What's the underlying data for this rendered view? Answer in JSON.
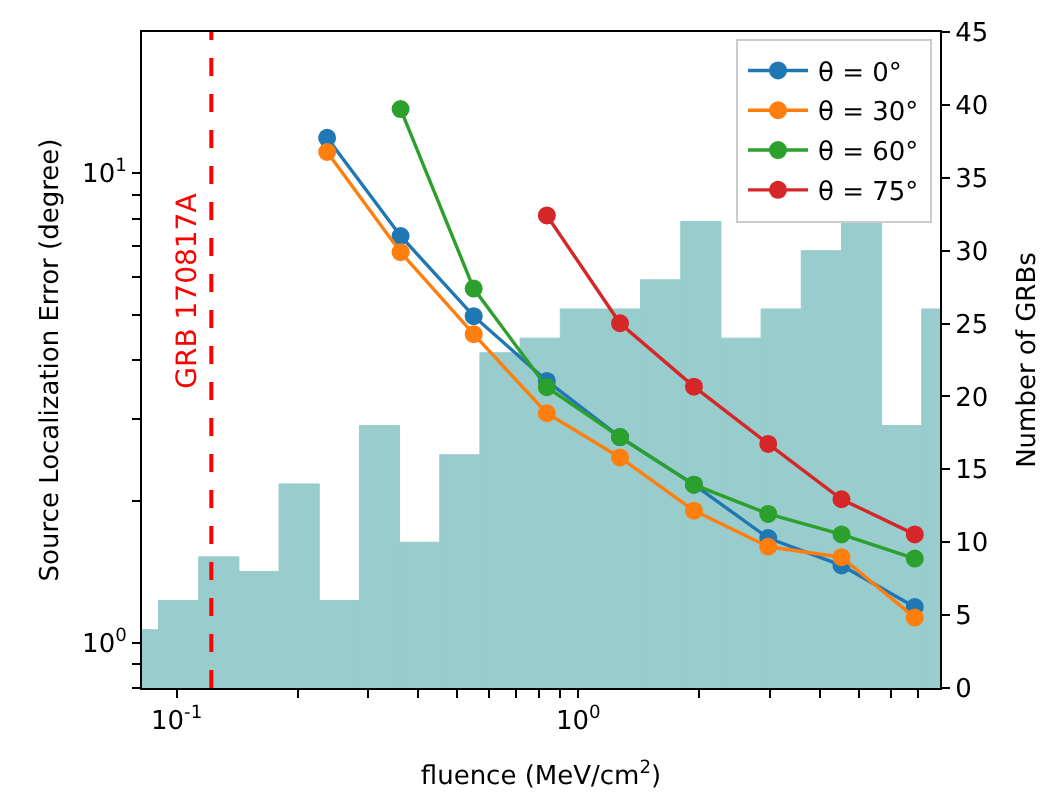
{
  "chart_data": {
    "type": "line",
    "xlabel": "fluence (MeV/cm$^{2}$)",
    "ylabel": "Source Localization Error (degree)",
    "y2label": "Number of GRBs",
    "log": "xy",
    "marker": "circle",
    "line_style": "solid",
    "grid": false,
    "legend": "top right",
    "xlim": [
      0.082,
      7.95
    ],
    "ylim": [
      0.8,
      20
    ],
    "y2lim": [
      0,
      45
    ],
    "xticks": [
      {
        "value": 0.1,
        "label": "10$^{-1}$"
      },
      {
        "value": 0.2,
        "label": null
      },
      {
        "value": 0.3,
        "label": null
      },
      {
        "value": 0.4,
        "label": null
      },
      {
        "value": 0.5,
        "label": null
      },
      {
        "value": 0.6,
        "label": null
      },
      {
        "value": 0.7,
        "label": null
      },
      {
        "value": 0.8,
        "label": null
      },
      {
        "value": 0.9,
        "label": null
      },
      {
        "value": 1,
        "label": "10$^{0}$"
      },
      {
        "value": 2,
        "label": null
      },
      {
        "value": 3,
        "label": null
      },
      {
        "value": 4,
        "label": null
      },
      {
        "value": 5,
        "label": null
      },
      {
        "value": 6,
        "label": null
      },
      {
        "value": 7,
        "label": null
      }
    ],
    "yticks": [
      {
        "value": 0.8,
        "label": null
      },
      {
        "value": 0.9,
        "label": null
      },
      {
        "value": 1,
        "label": "10$^{0}$"
      },
      {
        "value": 2,
        "label": null
      },
      {
        "value": 3,
        "label": null
      },
      {
        "value": 4,
        "label": null
      },
      {
        "value": 5,
        "label": null
      },
      {
        "value": 6,
        "label": null
      },
      {
        "value": 7,
        "label": null
      },
      {
        "value": 8,
        "label": null
      },
      {
        "value": 9,
        "label": null
      },
      {
        "value": 10,
        "label": "10$^{1}$"
      }
    ],
    "y2ticks": [
      0,
      5,
      10,
      15,
      20,
      25,
      30,
      35,
      40,
      45
    ],
    "x": [
      0.237,
      0.361,
      0.549,
      0.835,
      1.27,
      1.94,
      2.97,
      4.52,
      6.88
    ],
    "series": [
      {
        "type": "histogram",
        "axis": "y2",
        "color": "#99cccc",
        "bins": [
          0.082,
          0.0902,
          0.1135,
          0.1429,
          0.1799,
          0.2265,
          0.2851,
          0.3589,
          0.4519,
          0.5689,
          0.7161,
          0.9016,
          1.135,
          1.429,
          1.799,
          2.265,
          2.851,
          3.589,
          4.519,
          5.689,
          7.161,
          7.95
        ],
        "values": [
          4,
          6,
          9,
          8,
          14,
          6,
          18,
          10,
          16,
          23,
          24,
          26,
          26,
          28,
          32,
          24,
          26,
          30,
          32,
          18,
          26
        ]
      },
      {
        "name": "θ = 0°",
        "color": "#1f77b4",
        "values": [
          11.9,
          7.35,
          4.96,
          3.61,
          2.74,
          2.17,
          1.67,
          1.46,
          1.19
        ]
      },
      {
        "name": "θ = 30°",
        "color": "#ff7f0e",
        "values": [
          11.1,
          6.79,
          4.54,
          3.08,
          2.48,
          1.91,
          1.6,
          1.52,
          1.13
        ]
      },
      {
        "name": "θ = 60°",
        "color": "#2ca02c",
        "values": [
          null,
          13.7,
          5.68,
          3.5,
          2.74,
          2.17,
          1.88,
          1.7,
          1.51
        ]
      },
      {
        "name": "θ = 75°",
        "color": "#d62728",
        "values": [
          null,
          null,
          null,
          8.13,
          4.79,
          3.51,
          2.65,
          2.02,
          1.7
        ]
      }
    ],
    "ref_lines": [
      {
        "axis": "x",
        "value": 0.122,
        "label": "GRB 170817A",
        "color": "#ff0000",
        "line_style": "dashed"
      }
    ]
  }
}
